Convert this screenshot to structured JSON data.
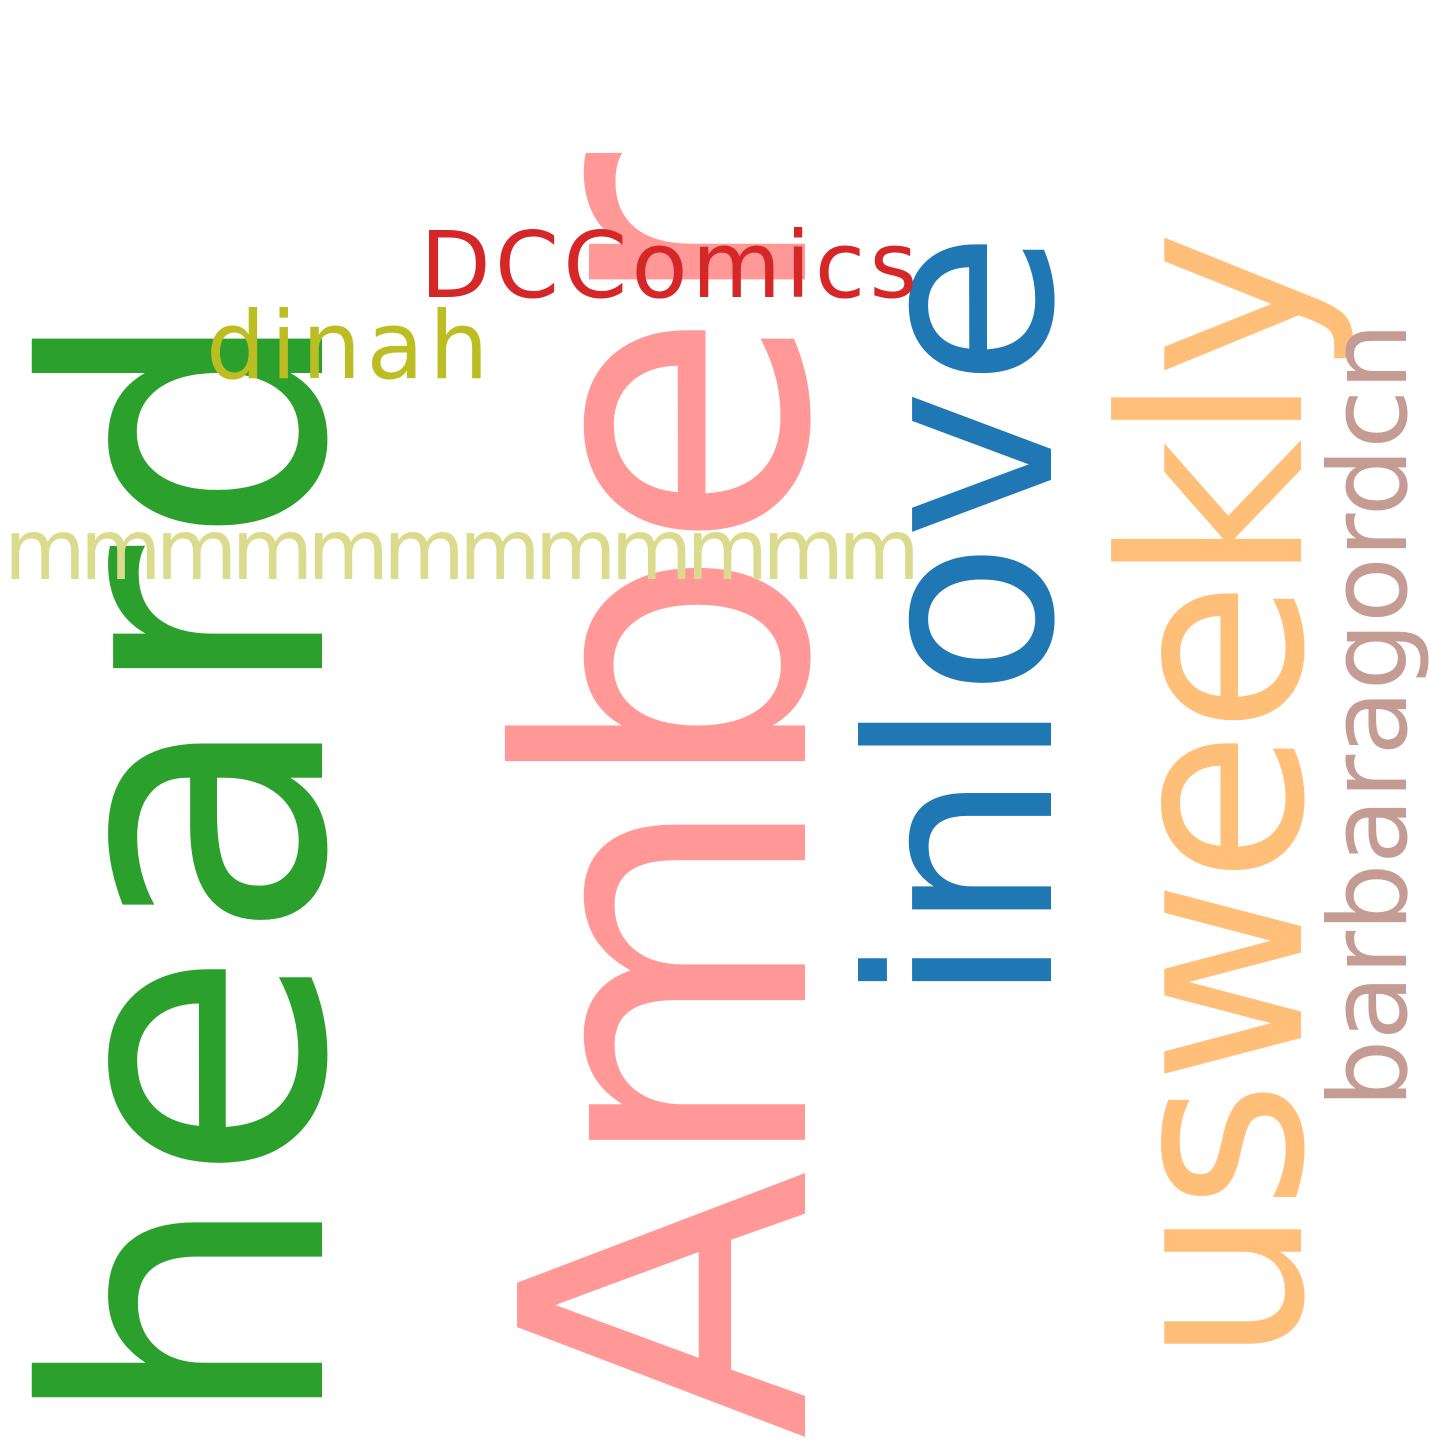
{
  "words": [
    {
      "key": "heard",
      "text": "heard",
      "color": "#2ca02c",
      "orientation": "vertical"
    },
    {
      "key": "amber",
      "text": "Amber",
      "color": "#ff9896",
      "orientation": "vertical"
    },
    {
      "key": "inlove",
      "text": "inlove",
      "color": "#1f77b4",
      "orientation": "vertical"
    },
    {
      "key": "usweekly",
      "text": "usweekly",
      "color": "#ffbf79",
      "orientation": "vertical"
    },
    {
      "key": "barbaragordon",
      "text": "barbaragordcn",
      "color": "#c49c94",
      "orientation": "vertical"
    },
    {
      "key": "dccomics",
      "text": "DCComics",
      "color": "#d62728",
      "orientation": "horizontal"
    },
    {
      "key": "dinah",
      "text": "dinah",
      "color": "#bcbd22",
      "orientation": "horizontal"
    },
    {
      "key": "mmm",
      "text": "mmmmmmmmmmmm",
      "color": "#dbdb8d",
      "orientation": "horizontal"
    }
  ]
}
